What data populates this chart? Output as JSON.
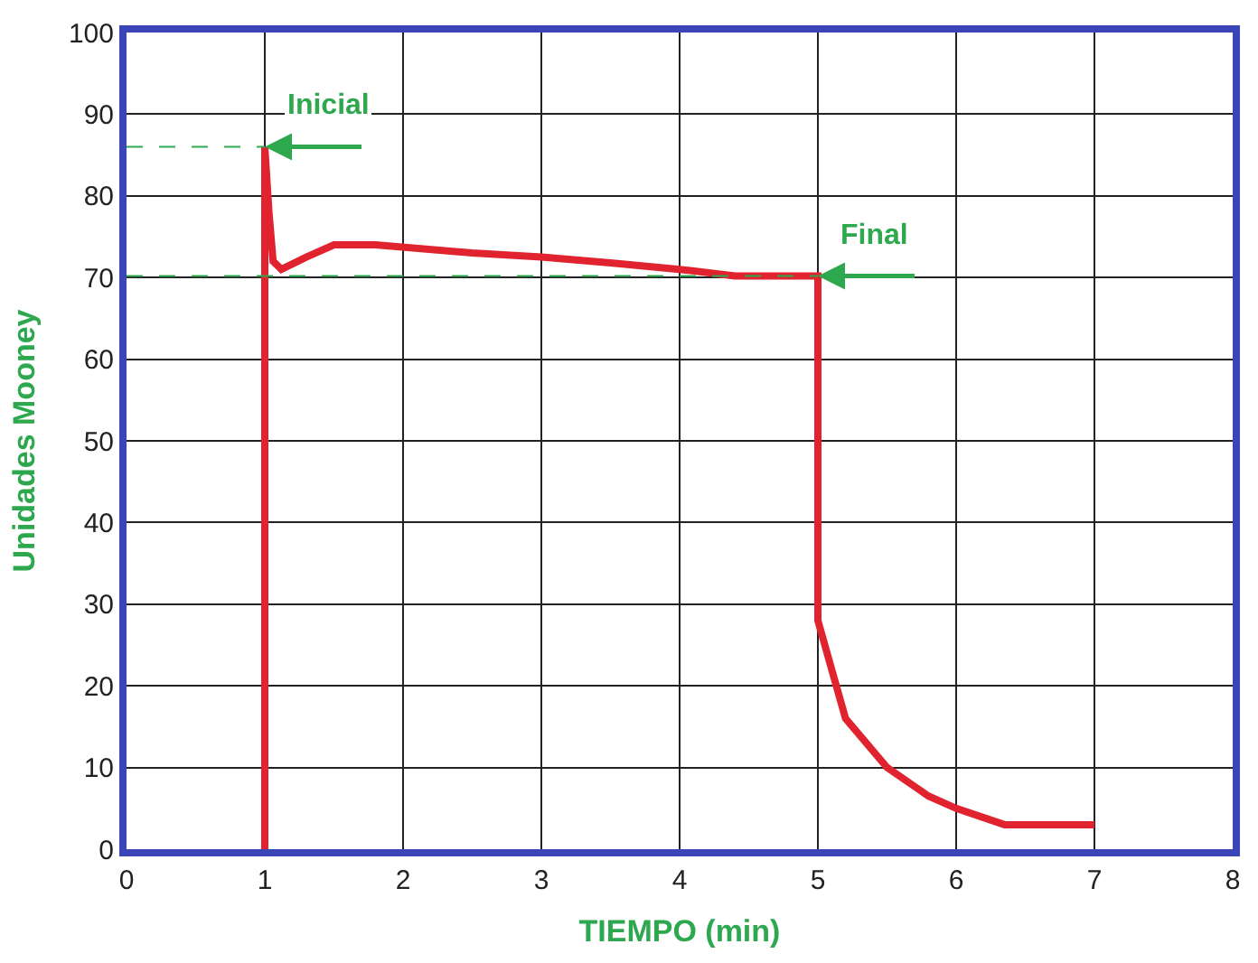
{
  "chart_data": {
    "type": "line",
    "xlabel": "TIEMPO (min)",
    "ylabel": "Unidades Mooney",
    "xlim": [
      0,
      8
    ],
    "xticks": [
      0,
      1,
      2,
      3,
      4,
      5,
      6,
      7,
      8
    ],
    "ylim": [
      0,
      100
    ],
    "yticks": [
      0,
      10,
      20,
      30,
      40,
      50,
      60,
      70,
      80,
      90,
      100
    ],
    "grid": true,
    "legend": false,
    "series": [
      {
        "color": "#e0232e",
        "x": [
          1,
          1,
          1.03,
          1.06,
          1.12,
          1.3,
          1.5,
          1.8,
          2.5,
          3,
          3.5,
          4,
          4.4,
          5,
          5,
          5.05,
          5.2,
          5.5,
          5.8,
          6,
          6.35,
          7
        ],
        "values": [
          0,
          86,
          78,
          72,
          71,
          72.5,
          74,
          74,
          73,
          72.5,
          71.8,
          71,
          70.2,
          70.2,
          28,
          25,
          16,
          10,
          6.5,
          5,
          3,
          3
        ]
      }
    ],
    "ref_lines": [
      {
        "axis": "y",
        "value": 86,
        "label": "Inicial",
        "color": "#2ea84f",
        "line_style": "dashed"
      },
      {
        "axis": "y",
        "value": 70.2,
        "label": "Final",
        "color": "#2ea84f",
        "line_style": "dashed"
      }
    ]
  }
}
